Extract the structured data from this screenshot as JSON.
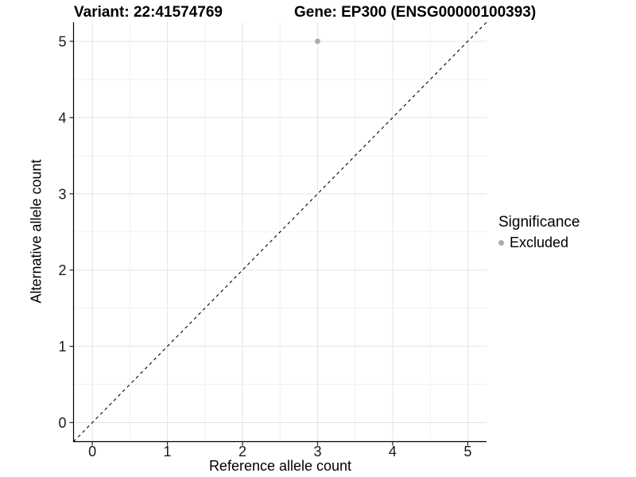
{
  "chart_data": {
    "type": "scatter",
    "title_left": "Variant: 22:41574769",
    "title_right": "Gene: EP300 (ENSG00000100393)",
    "xlabel": "Reference allele count",
    "ylabel": "Alternative allele count",
    "xlim": [
      -0.25,
      5.25
    ],
    "ylim": [
      -0.25,
      5.25
    ],
    "x_ticks": [
      0,
      1,
      2,
      3,
      4,
      5
    ],
    "y_ticks": [
      0,
      1,
      2,
      3,
      4,
      5
    ],
    "grid": "major at integers, minor at halves",
    "legend_position": "right",
    "legend": {
      "title": "Significance",
      "items": [
        {
          "label": "Excluded",
          "color": "#ababab"
        }
      ]
    },
    "series": [
      {
        "name": "Excluded",
        "color": "#ababab",
        "points": [
          {
            "x": 3,
            "y": 5
          }
        ]
      }
    ],
    "reference_line": {
      "type": "identity",
      "slope": 1,
      "intercept": 0,
      "style": "dashed",
      "color": "#000000"
    }
  },
  "colors": {
    "grid_major": "#e4e4e4",
    "grid_minor": "#f1f1f1",
    "axis_line": "#000000",
    "tick_mark": "#262626",
    "tick_label": "#1a1a1a",
    "point": "#ababab",
    "background": "#ffffff"
  }
}
